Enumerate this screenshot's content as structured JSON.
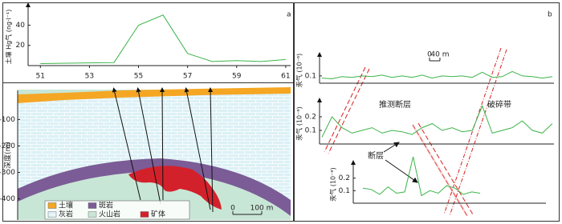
{
  "chart_data": [
    {
      "type": "line",
      "label": "a",
      "y_label": "土壤 Hg气 (ng·l⁻¹)",
      "color": "#3cb44b",
      "x": [
        51,
        54,
        55,
        56,
        57,
        58,
        59,
        60,
        61
      ],
      "values": [
        2,
        3,
        40,
        50,
        12,
        4,
        5,
        4,
        6
      ],
      "xlim": [
        50.5,
        61.2
      ],
      "ylim": [
        0,
        57
      ],
      "xticks": [
        51,
        53,
        55,
        57,
        59,
        61
      ],
      "yticks": [
        20,
        40
      ]
    },
    {
      "type": "section",
      "y_label": "深度(m)",
      "ylim": [
        -480,
        10
      ],
      "yticks": [
        -100,
        -200,
        -300,
        -400
      ],
      "legend": [
        {
          "name": "土壤",
          "color": "#f5a623"
        },
        {
          "name": "斑岩",
          "color": "#7b5c96"
        },
        {
          "name": "灰岩",
          "color": "#dcf1f6"
        },
        {
          "name": "火山岩",
          "color": "#c8e6d6"
        },
        {
          "name": "矿体",
          "color": "#d3212b"
        }
      ],
      "scale": [
        "0",
        "100 m"
      ]
    },
    {
      "type": "line",
      "label": "b",
      "y_label": "汞气 (10⁻⁶)",
      "color": "#3cb44b",
      "categories": [
        null,
        null,
        null,
        null,
        null,
        null,
        null,
        null,
        null,
        null,
        null,
        null,
        null,
        null,
        null,
        null,
        null,
        null,
        null,
        null,
        null,
        null,
        null,
        null
      ],
      "values": [
        0.07,
        0.06,
        0.09,
        0.08,
        0.1,
        0.09,
        0.11,
        0.08,
        0.1,
        0.08,
        0.11,
        0.07,
        0.1,
        0.09,
        0.1,
        0.08,
        0.15,
        0.08,
        0.09,
        0.16,
        0.1,
        0.09,
        0.07,
        0.09
      ],
      "ylim": [
        0,
        0.35
      ],
      "yticks": [
        0.1
      ],
      "scale": [
        "0",
        "40 m"
      ]
    },
    {
      "type": "line",
      "y_label": "汞气 (10⁻⁶)",
      "color": "#3cb44b",
      "categories": [
        null,
        null,
        null,
        null,
        null,
        null,
        null,
        null,
        null,
        null,
        null,
        null,
        null,
        null,
        null,
        null,
        null,
        null,
        null,
        null,
        null,
        null,
        null,
        null
      ],
      "values": [
        0.05,
        0.2,
        0.12,
        0.08,
        0.1,
        0.12,
        0.08,
        0.1,
        0.09,
        0.07,
        0.12,
        0.15,
        0.1,
        0.12,
        0.09,
        0.1,
        0.28,
        0.08,
        0.1,
        0.12,
        0.17,
        0.1,
        0.08,
        0.15
      ],
      "ylim": [
        0,
        0.3
      ],
      "yticks": [
        0.1,
        0.2
      ],
      "annotations": [
        "推测断层",
        "破碎带"
      ]
    },
    {
      "type": "line",
      "y_label": "汞气 (10⁻⁶)",
      "color": "#3cb44b",
      "categories": [
        null,
        null,
        null,
        null,
        null,
        null,
        null,
        null,
        null,
        null,
        null,
        null,
        null,
        null,
        null
      ],
      "values": [
        0.12,
        0.11,
        0.07,
        0.13,
        0.08,
        0.09,
        0.37,
        0.06,
        0.1,
        0.08,
        0.14,
        0.12,
        0.07,
        0.09,
        0.08
      ],
      "ylim": [
        0,
        0.3
      ],
      "yticks": [
        0.1,
        0.2
      ],
      "annotations": [
        "断层"
      ]
    }
  ]
}
